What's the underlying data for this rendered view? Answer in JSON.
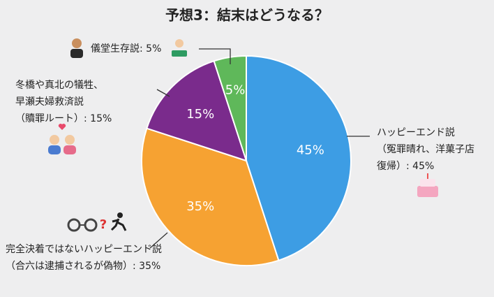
{
  "chart_data": {
    "type": "pie",
    "title": "予想3：結末はどうなる？",
    "categories": [
      [
        "ハッピーエンド説",
        "（冤罪晴れ、洋菓子店",
        "復帰）: 45%"
      ],
      [
        "完全決着ではないハッピーエンド説",
        "（合六は逮捕されるが偽物）: 35%"
      ],
      [
        "冬橋や真北の犠牲、",
        "早瀬夫婦救済説",
        "（贖罪ルート）: 15%"
      ],
      [
        "儀堂生存説: 5%"
      ]
    ],
    "values": [
      45,
      35,
      15,
      5
    ],
    "value_labels": [
      "45%",
      "35%",
      "15%",
      "5%"
    ],
    "colors": [
      "#3d9de4",
      "#f6a232",
      "#7a2b8c",
      "#5fb85a"
    ]
  }
}
